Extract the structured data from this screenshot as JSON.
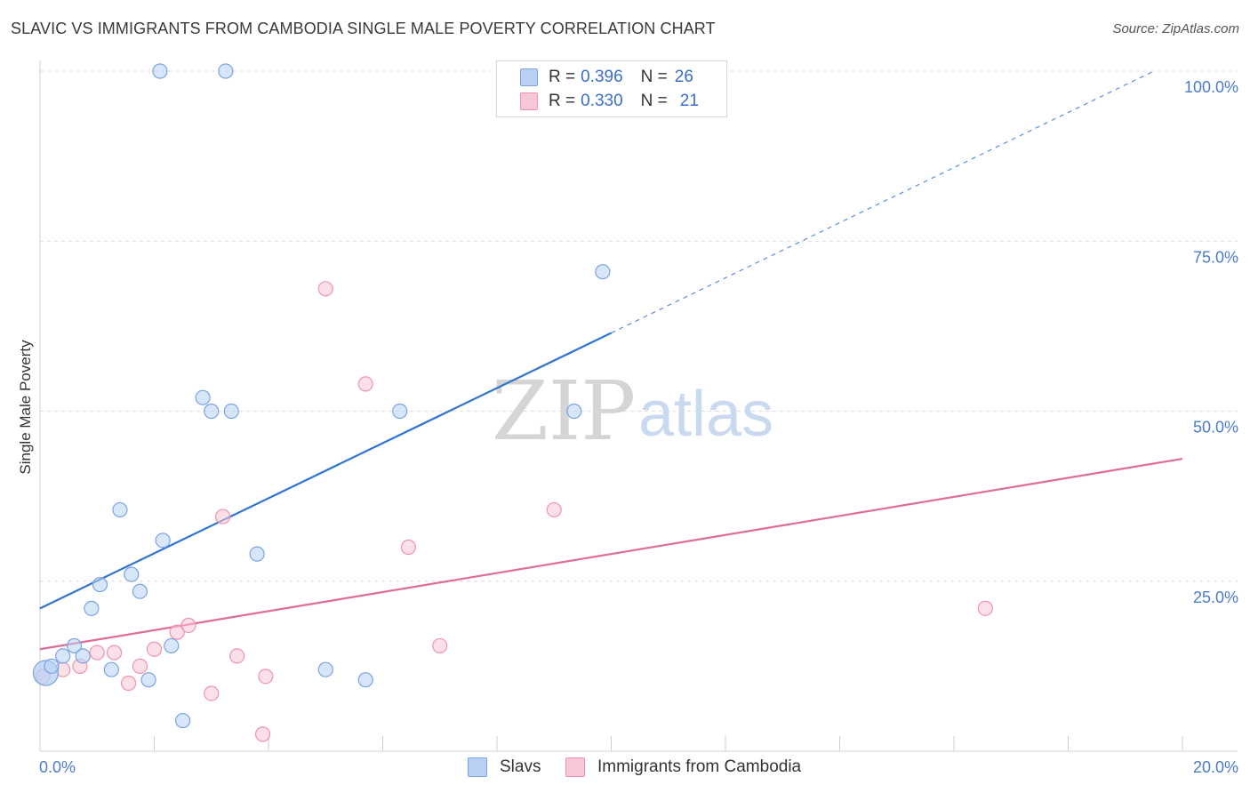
{
  "title": "SLAVIC VS IMMIGRANTS FROM CAMBODIA SINGLE MALE POVERTY CORRELATION CHART",
  "source": "Source: ZipAtlas.com",
  "watermark": {
    "zip": "ZIP",
    "atlas": "atlas"
  },
  "legend": {
    "rows": [
      {
        "r_label": "R =",
        "r_value": "0.396",
        "n_label": "N =",
        "n_value": "26",
        "color": "#b8d1f5",
        "border": "#7aa3e0"
      },
      {
        "r_label": "R =",
        "r_value": "0.330",
        "n_label": "N =",
        "n_value": "21",
        "color": "#f9c6d5",
        "border": "#ee93ae"
      }
    ]
  },
  "bottom_legend": [
    {
      "label": "Slavs",
      "color": "#b8d1f5",
      "border": "#7aa3e0"
    },
    {
      "label": "Immigrants from Cambodia",
      "color": "#f9c6d5",
      "border": "#ee93ae"
    }
  ],
  "chart_data": {
    "type": "scatter",
    "title": "SLAVIC VS IMMIGRANTS FROM CAMBODIA SINGLE MALE POVERTY CORRELATION CHART",
    "xlabel": "",
    "ylabel": "Single Male Poverty",
    "xlim": [
      0,
      20
    ],
    "ylim": [
      0,
      100
    ],
    "x_tick_labels": [
      {
        "value": 0,
        "label": "0.0%"
      },
      {
        "value": 20,
        "label": "20.0%"
      }
    ],
    "x_minor_ticks": [
      0,
      2,
      4,
      6,
      8,
      10,
      12,
      14,
      16,
      18,
      20
    ],
    "y_tick_labels": [
      {
        "value": 25,
        "label": "25.0%"
      },
      {
        "value": 50,
        "label": "50.0%"
      },
      {
        "value": 75,
        "label": "75.0%"
      },
      {
        "value": 100,
        "label": "100.0%"
      }
    ],
    "grid": true,
    "series": [
      {
        "name": "Slavs",
        "color": "#7aa3e0",
        "fill": "#b8d1f5",
        "points": [
          [
            0.1,
            11.5
          ],
          [
            0.2,
            12.5
          ],
          [
            0.4,
            14.0
          ],
          [
            0.6,
            15.5
          ],
          [
            0.75,
            14.0
          ],
          [
            0.9,
            21.0
          ],
          [
            1.05,
            24.5
          ],
          [
            1.25,
            12.0
          ],
          [
            1.4,
            35.5
          ],
          [
            1.6,
            26.0
          ],
          [
            1.75,
            23.5
          ],
          [
            1.9,
            10.5
          ],
          [
            2.1,
            100.0
          ],
          [
            2.15,
            31.0
          ],
          [
            2.3,
            15.5
          ],
          [
            2.5,
            4.5
          ],
          [
            2.85,
            52.0
          ],
          [
            3.0,
            50.0
          ],
          [
            3.25,
            100.0
          ],
          [
            3.35,
            50.0
          ],
          [
            3.8,
            29.0
          ],
          [
            5.0,
            12.0
          ],
          [
            5.7,
            10.5
          ],
          [
            6.3,
            50.0
          ],
          [
            9.35,
            50.0
          ],
          [
            9.85,
            70.5
          ]
        ],
        "trend": {
          "x0": 0,
          "y0": 21.0,
          "x1": 10.0,
          "y1": 61.5,
          "dash_to_x": 19.5,
          "dash_to_y": 100.0
        }
      },
      {
        "name": "Immigrants from Cambodia",
        "color": "#ee93ae",
        "fill": "#f9c6d5",
        "points": [
          [
            0.05,
            11.0
          ],
          [
            0.4,
            12.0
          ],
          [
            0.7,
            12.5
          ],
          [
            1.0,
            14.5
          ],
          [
            1.3,
            14.5
          ],
          [
            1.55,
            10.0
          ],
          [
            1.75,
            12.5
          ],
          [
            2.0,
            15.0
          ],
          [
            2.4,
            17.5
          ],
          [
            2.6,
            18.5
          ],
          [
            3.0,
            8.5
          ],
          [
            3.2,
            34.5
          ],
          [
            3.45,
            14.0
          ],
          [
            3.9,
            2.5
          ],
          [
            3.95,
            11.0
          ],
          [
            5.0,
            68.0
          ],
          [
            5.7,
            54.0
          ],
          [
            6.45,
            30.0
          ],
          [
            7.0,
            15.5
          ],
          [
            9.0,
            35.5
          ],
          [
            16.55,
            21.0
          ]
        ],
        "trend": {
          "x0": 0,
          "y0": 15.0,
          "x1": 20.0,
          "y1": 43.0
        }
      }
    ]
  }
}
